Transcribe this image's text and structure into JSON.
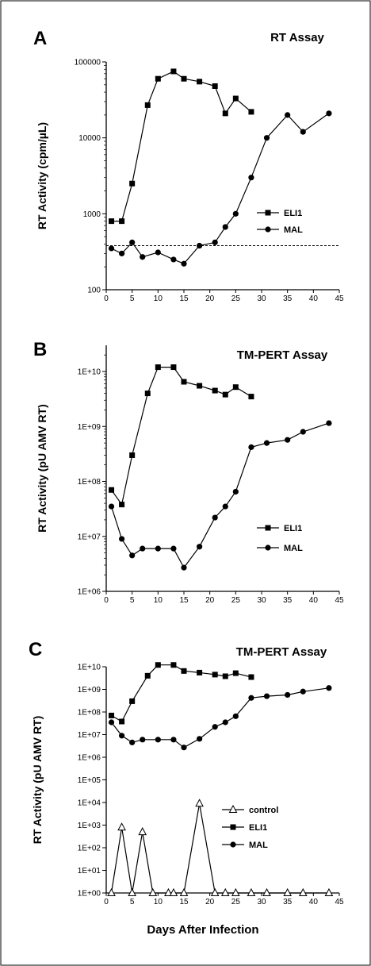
{
  "xlabel": "Days After Infection",
  "chart_data": [
    {
      "type": "line",
      "panel": "A",
      "title": "RT Assay",
      "ylabel": "RT Activity (cpm/µL)",
      "yscale": "log",
      "xlim": [
        0,
        45
      ],
      "ylim": [
        100,
        100000
      ],
      "xticks": [
        "0",
        "5",
        "10",
        "15",
        "20",
        "25",
        "30",
        "35",
        "40",
        "45"
      ],
      "yticks": [
        "100",
        "1000",
        "10000",
        "100000"
      ],
      "ytick_values": [
        100,
        1000,
        10000,
        100000
      ],
      "threshold": 380,
      "legend_position": "right-middle",
      "series": [
        {
          "name": "ELI1",
          "marker": "square",
          "x": [
            1,
            3,
            5,
            8,
            10,
            13,
            15,
            18,
            21,
            23,
            25,
            28
          ],
          "y": [
            800,
            800,
            2500,
            27000,
            60000,
            75000,
            60000,
            55000,
            48000,
            21000,
            33000,
            22000
          ]
        },
        {
          "name": "MAL",
          "marker": "circle",
          "x": [
            1,
            3,
            5,
            7,
            10,
            13,
            15,
            18,
            21,
            23,
            25,
            28,
            31,
            35,
            38,
            43
          ],
          "y": [
            350,
            300,
            420,
            270,
            310,
            250,
            220,
            380,
            420,
            670,
            1000,
            3000,
            10000,
            20000,
            12000,
            21000
          ]
        }
      ]
    },
    {
      "type": "line",
      "panel": "B",
      "title": "TM-PERT Assay",
      "ylabel": "RT Activity (pU AMV RT)",
      "yscale": "log",
      "xlim": [
        0,
        45
      ],
      "ylim": [
        1000000,
        30000000000
      ],
      "xticks": [
        "0",
        "5",
        "10",
        "15",
        "20",
        "25",
        "30",
        "35",
        "40",
        "45"
      ],
      "yticks": [
        "1E+06",
        "1E+07",
        "1E+08",
        "1E+09",
        "1E+10"
      ],
      "ytick_values": [
        1000000,
        10000000,
        100000000,
        1000000000,
        10000000000
      ],
      "legend_position": "right-lower",
      "series": [
        {
          "name": "ELI1",
          "marker": "square",
          "x": [
            1,
            3,
            5,
            8,
            10,
            13,
            15,
            18,
            21,
            23,
            25,
            28
          ],
          "y": [
            70000000,
            38000000,
            300000000,
            4000000000,
            12000000000,
            12000000000,
            6500000000,
            5500000000,
            4500000000,
            3800000000,
            5200000000,
            3500000000
          ]
        },
        {
          "name": "MAL",
          "marker": "circle",
          "x": [
            1,
            3,
            5,
            7,
            10,
            13,
            15,
            18,
            21,
            23,
            25,
            28,
            31,
            35,
            38,
            43
          ],
          "y": [
            35000000,
            9000000,
            4500000,
            6000000,
            6000000,
            6000000,
            2700000,
            6500000,
            22000000,
            35000000,
            65000000,
            420000000,
            500000000,
            570000000,
            800000000,
            1150000000
          ]
        }
      ]
    },
    {
      "type": "line",
      "panel": "C",
      "title": "TM-PERT Assay",
      "ylabel": "RT Activity (pU AMV RT)",
      "yscale": "log",
      "xlim": [
        0,
        45
      ],
      "ylim": [
        1,
        10000000000
      ],
      "xticks": [
        "0",
        "5",
        "10",
        "15",
        "20",
        "25",
        "30",
        "35",
        "40",
        "45"
      ],
      "yticks": [
        "1E+00",
        "1E+01",
        "1E+02",
        "1E+03",
        "1E+04",
        "1E+05",
        "1E+06",
        "1E+07",
        "1E+08",
        "1E+09",
        "1E+10"
      ],
      "ytick_values": [
        1,
        10,
        100,
        1000,
        10000,
        100000,
        1000000,
        10000000,
        100000000,
        1000000000,
        10000000000
      ],
      "legend_position": "lower-right",
      "series": [
        {
          "name": "control",
          "marker": "open-triangle",
          "x": [
            1,
            3,
            5,
            7,
            9,
            12,
            13,
            15,
            18,
            21,
            23,
            25,
            28,
            31,
            35,
            38,
            43
          ],
          "y": [
            1,
            800,
            1,
            500,
            1,
            1,
            1,
            1,
            9000,
            1,
            1,
            1,
            1,
            1,
            1,
            1,
            1
          ]
        },
        {
          "name": "ELI1",
          "marker": "square",
          "x": [
            1,
            3,
            5,
            8,
            10,
            13,
            15,
            18,
            21,
            23,
            25,
            28
          ],
          "y": [
            70000000,
            38000000,
            300000000,
            4000000000,
            12000000000,
            12000000000,
            6500000000,
            5500000000,
            4500000000,
            3800000000,
            5200000000,
            3500000000
          ]
        },
        {
          "name": "MAL",
          "marker": "circle",
          "x": [
            1,
            3,
            5,
            7,
            10,
            13,
            15,
            18,
            21,
            23,
            25,
            28,
            31,
            35,
            38,
            43
          ],
          "y": [
            35000000,
            9000000,
            4500000,
            6000000,
            6000000,
            6000000,
            2700000,
            6500000,
            22000000,
            35000000,
            65000000,
            420000000,
            500000000,
            570000000,
            800000000,
            1150000000
          ]
        }
      ]
    }
  ]
}
